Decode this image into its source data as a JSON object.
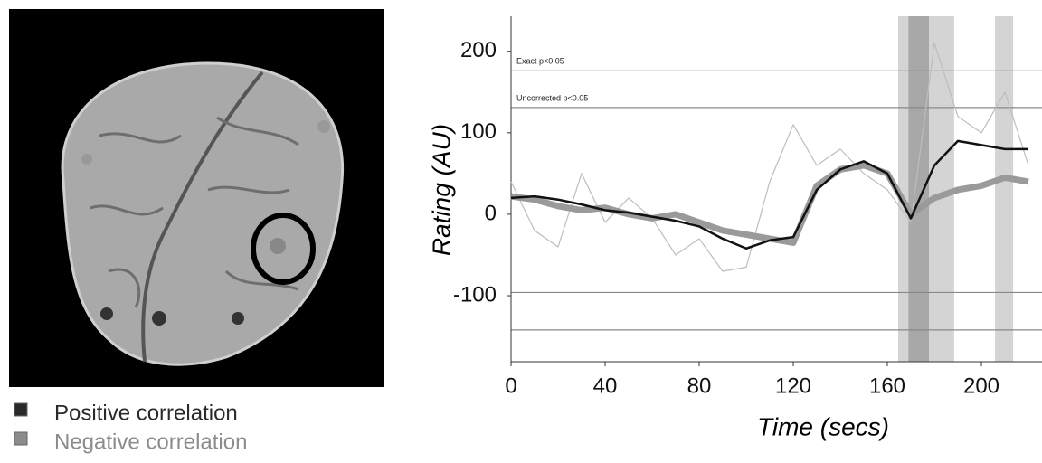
{
  "brain_legend": [
    {
      "label": "Positive correlation",
      "color": "#2a2a2a"
    },
    {
      "label": "Negative correlation",
      "color": "#8c8c8c"
    }
  ],
  "chart_data": {
    "type": "line",
    "x_label": "Time (secs)",
    "y_label": "Rating (AU)",
    "x": [
      0,
      10,
      20,
      30,
      40,
      50,
      60,
      70,
      80,
      90,
      100,
      110,
      120,
      130,
      140,
      150,
      160,
      170,
      180,
      190,
      200,
      210,
      220
    ],
    "series": [
      {
        "color": "#bdbdbd",
        "width": 1.2,
        "values": [
          40,
          -20,
          -40,
          50,
          -10,
          20,
          -5,
          -50,
          -30,
          -70,
          -65,
          40,
          110,
          60,
          80,
          50,
          30,
          -10,
          210,
          120,
          100,
          150,
          60
        ]
      },
      {
        "color": "#9a9a9a",
        "width": 7,
        "values": [
          22,
          18,
          10,
          5,
          8,
          0,
          -5,
          0,
          -10,
          -20,
          -25,
          -30,
          -35,
          35,
          55,
          60,
          50,
          0,
          20,
          30,
          35,
          45,
          40
        ]
      },
      {
        "color": "#111111",
        "width": 2.5,
        "values": [
          20,
          22,
          18,
          12,
          5,
          2,
          -3,
          -8,
          -15,
          -30,
          -42,
          -32,
          -28,
          30,
          55,
          65,
          50,
          -5,
          60,
          90,
          85,
          80,
          80
        ]
      }
    ],
    "highlights": [
      {
        "start": 164.6,
        "end": 188.4,
        "color": "#d4d4d4"
      },
      {
        "start": 169,
        "end": 177.7,
        "color": "#a8a8a8"
      },
      {
        "start": 205.8,
        "end": 213.5,
        "color": "#d4d4d4"
      }
    ],
    "threshold_lines": [
      {
        "value": 176,
        "label": "Exact p<0.05"
      },
      {
        "value": 131,
        "label": "Uncorrected p<0.05"
      }
    ],
    "reference_lines": [
      -96,
      -142
    ],
    "xlim": [
      0,
      225
    ],
    "ylim": [
      -181,
      243
    ],
    "xticks": [
      0,
      40,
      80,
      120,
      160,
      200
    ],
    "yticks": [
      200,
      100,
      0,
      -100
    ]
  }
}
